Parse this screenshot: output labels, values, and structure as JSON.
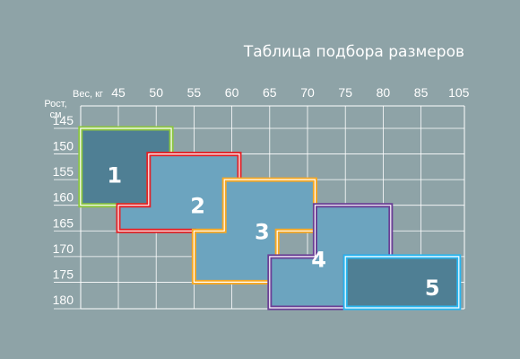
{
  "chart_data": {
    "type": "table",
    "title": "Таблица подбора размеров",
    "x_axis": {
      "label": "Вес, кг",
      "ticks": [
        45,
        50,
        55,
        60,
        65,
        70,
        75,
        80,
        85,
        105
      ]
    },
    "y_axis": {
      "label_line1": "Рост,",
      "label_line2": "см",
      "ticks": [
        145,
        150,
        155,
        160,
        165,
        170,
        175,
        180
      ]
    },
    "grid": true,
    "zones": [
      {
        "label": "1",
        "border_color": "#8cc63f",
        "fill_color": "#4f7f94",
        "polygon": [
          [
            40,
            145
          ],
          [
            52,
            145
          ],
          [
            52,
            154
          ],
          [
            49,
            154
          ],
          [
            49,
            160
          ],
          [
            40,
            160
          ]
        ]
      },
      {
        "label": "2",
        "border_color": "#e32227",
        "fill_color": "#6ca4bf",
        "polygon": [
          [
            49,
            150
          ],
          [
            61,
            150
          ],
          [
            61,
            170
          ],
          [
            55,
            170
          ],
          [
            55,
            165
          ],
          [
            45,
            165
          ],
          [
            45,
            160
          ],
          [
            49,
            160
          ]
        ]
      },
      {
        "label": "3",
        "border_color": "#f7a823",
        "fill_color": "#6ca4bf",
        "polygon": [
          [
            59,
            155
          ],
          [
            71,
            155
          ],
          [
            71,
            165
          ],
          [
            66,
            165
          ],
          [
            66,
            175
          ],
          [
            55,
            175
          ],
          [
            55,
            165
          ],
          [
            59,
            165
          ]
        ]
      },
      {
        "label": "4",
        "border_color": "#6a3f96",
        "fill_color": "#6ca4bf",
        "polygon": [
          [
            71,
            160
          ],
          [
            81,
            160
          ],
          [
            81,
            170
          ],
          [
            75,
            170
          ],
          [
            75,
            180
          ],
          [
            65,
            180
          ],
          [
            65,
            170
          ],
          [
            71,
            170
          ]
        ]
      },
      {
        "label": "5",
        "border_color": "#29b6f0",
        "fill_color": "#4f7f94",
        "polygon": [
          [
            75,
            170
          ],
          [
            105,
            170
          ],
          [
            105,
            180
          ],
          [
            75,
            180
          ]
        ]
      }
    ]
  },
  "colors": {
    "background": "#8ea3a7",
    "grid": "#ffffff",
    "text": "#ffffff"
  }
}
